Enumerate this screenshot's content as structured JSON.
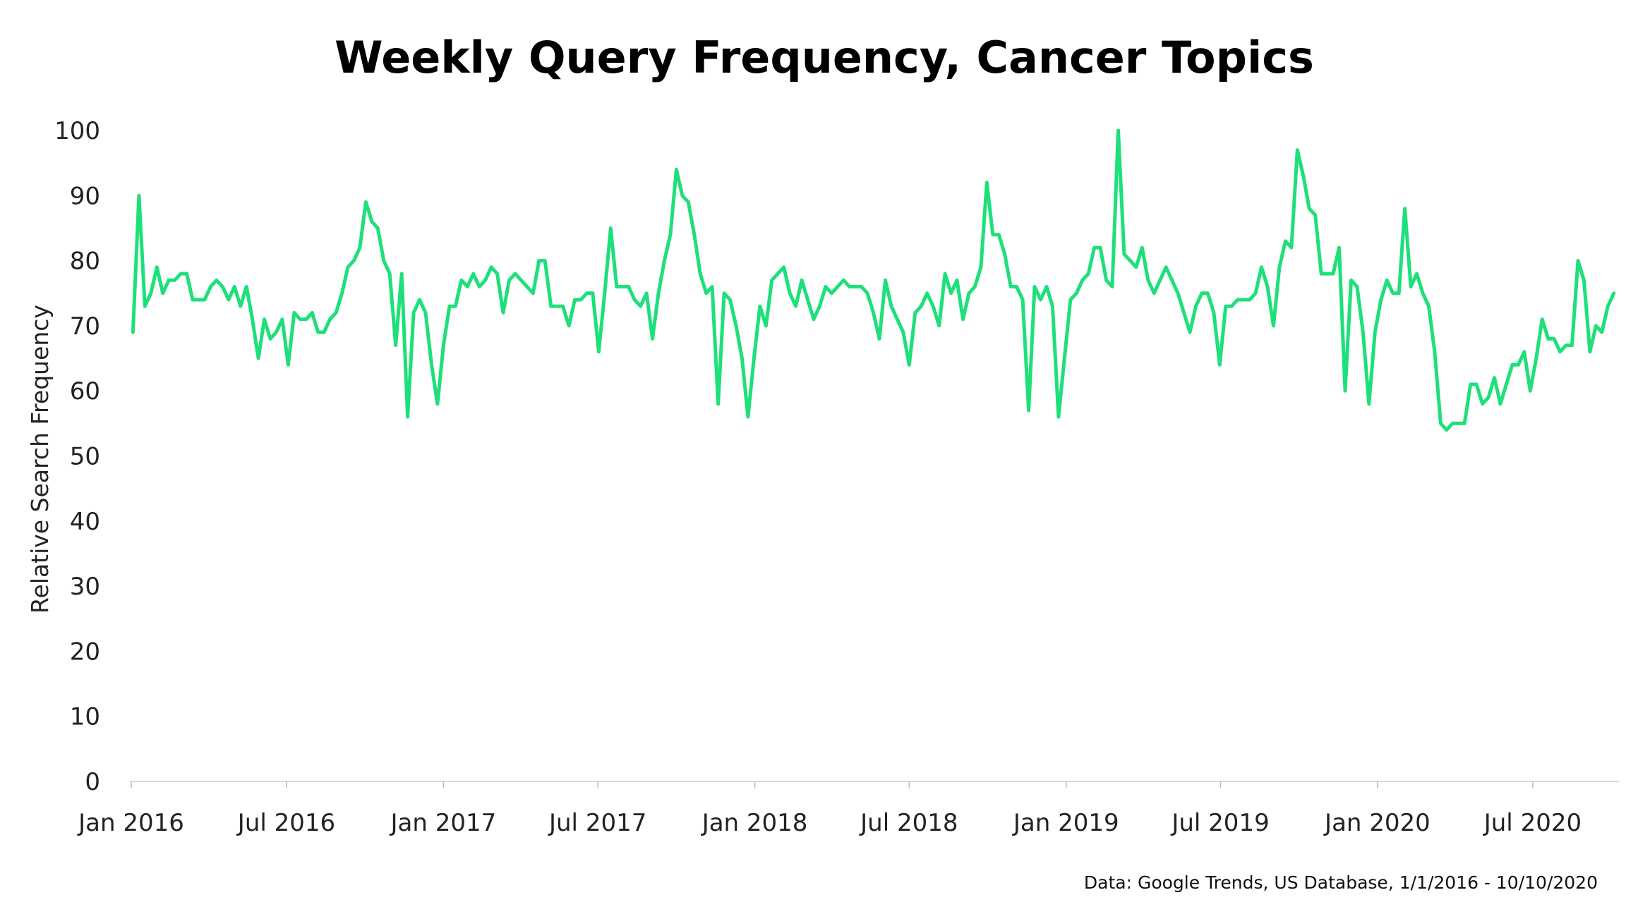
{
  "chart_data": {
    "type": "line",
    "title": "Weekly Query Frequency, Cancer Topics",
    "xlabel": "",
    "ylabel": "Relative Search Frequency",
    "source": "Data: Google Trends, US Database, 1/1/2016 - 10/10/2020",
    "ylim": [
      0,
      100
    ],
    "yticks": [
      "0",
      "10",
      "20",
      "30",
      "40",
      "50",
      "60",
      "70",
      "80",
      "90",
      "100"
    ],
    "xticks": [
      {
        "label": "Jan 2016",
        "date": "2016-01-01"
      },
      {
        "label": "Jul 2016",
        "date": "2016-07-01"
      },
      {
        "label": "Jan 2017",
        "date": "2017-01-01"
      },
      {
        "label": "Jul 2017",
        "date": "2017-07-01"
      },
      {
        "label": "Jan 2018",
        "date": "2018-01-01"
      },
      {
        "label": "Jul 2018",
        "date": "2018-07-01"
      },
      {
        "label": "Jan 2019",
        "date": "2019-01-01"
      },
      {
        "label": "Jul 2019",
        "date": "2019-07-01"
      },
      {
        "label": "Jan 2020",
        "date": "2020-01-01"
      },
      {
        "label": "Jul 2020",
        "date": "2020-07-01"
      }
    ],
    "x_range": [
      "2016-01-01",
      "2020-10-10"
    ],
    "grid": false,
    "legend": "none",
    "series": [
      {
        "color": "#1ee07a",
        "x_start": "2016-01-03",
        "x_step_days": 7,
        "values": [
          69,
          90,
          73,
          75,
          79,
          75,
          77,
          77,
          78,
          78,
          74,
          74,
          74,
          76,
          77,
          76,
          74,
          76,
          73,
          76,
          71,
          65,
          71,
          68,
          69,
          71,
          64,
          72,
          71,
          71,
          72,
          69,
          69,
          71,
          72,
          75,
          79,
          80,
          82,
          89,
          86,
          85,
          80,
          78,
          67,
          78,
          56,
          72,
          74,
          72,
          64,
          58,
          67,
          73,
          73,
          77,
          76,
          78,
          76,
          77,
          79,
          78,
          72,
          77,
          78,
          77,
          76,
          75,
          80,
          80,
          73,
          73,
          73,
          70,
          74,
          74,
          75,
          75,
          66,
          75,
          85,
          76,
          76,
          76,
          74,
          73,
          75,
          68,
          75,
          80,
          84,
          94,
          90,
          89,
          84,
          78,
          75,
          76,
          58,
          75,
          74,
          70,
          65,
          56,
          65,
          73,
          70,
          77,
          78,
          79,
          75,
          73,
          77,
          74,
          71,
          73,
          76,
          75,
          76,
          77,
          76,
          76,
          76,
          75,
          72,
          68,
          77,
          73,
          71,
          69,
          64,
          72,
          73,
          75,
          73,
          70,
          78,
          75,
          77,
          71,
          75,
          76,
          79,
          92,
          84,
          84,
          81,
          76,
          76,
          74,
          57,
          76,
          74,
          76,
          73,
          56,
          65,
          74,
          75,
          77,
          78,
          82,
          82,
          77,
          76,
          100,
          81,
          80,
          79,
          82,
          77,
          75,
          77,
          79,
          77,
          75,
          72,
          69,
          73,
          75,
          75,
          72,
          64,
          73,
          73,
          74,
          74,
          74,
          75,
          79,
          76,
          70,
          79,
          83,
          82,
          97,
          93,
          88,
          87,
          78,
          78,
          78,
          82,
          60,
          77,
          76,
          69,
          58,
          69,
          74,
          77,
          75,
          75,
          88,
          76,
          78,
          75,
          73,
          66,
          55,
          54,
          55,
          55,
          55,
          61,
          61,
          58,
          59,
          62,
          58,
          61,
          64,
          64,
          66,
          60,
          65,
          71,
          68,
          68,
          66,
          67,
          67,
          80,
          77,
          66,
          70,
          69,
          73,
          75
        ]
      }
    ]
  }
}
